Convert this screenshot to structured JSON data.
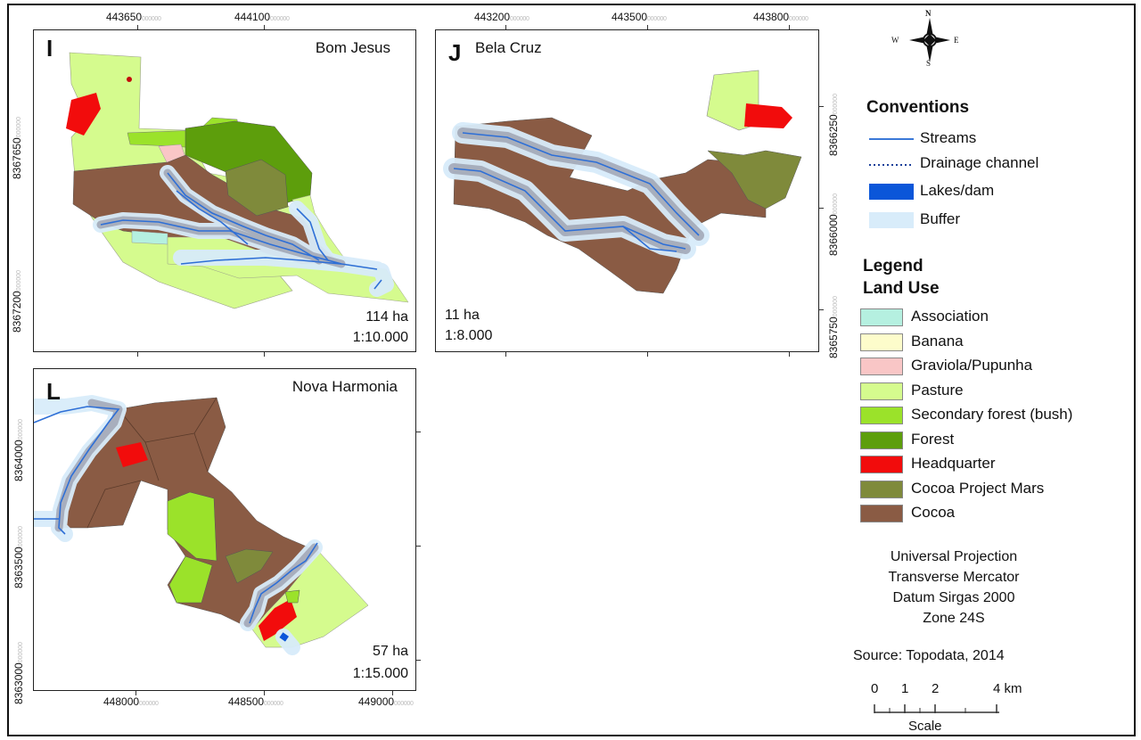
{
  "panels": {
    "i": {
      "letter": "I",
      "site": "Bom Jesus",
      "area": "114 ha",
      "scale": "1:10.000",
      "x_ticks": [
        "443650",
        "444100"
      ],
      "y_ticks": [
        "8367650",
        "8367200"
      ]
    },
    "j": {
      "letter": "J",
      "site": "Bela Cruz",
      "area": "11 ha",
      "scale": "1:8.000",
      "x_ticks": [
        "443200",
        "443500",
        "443800"
      ],
      "y_ticks": [
        "8366250",
        "8366000",
        "8365750"
      ]
    },
    "l": {
      "letter": "L",
      "site": "Nova Harmonia",
      "area": "57 ha",
      "scale": "1:15.000",
      "x_ticks": [
        "448000",
        "448500",
        "449000"
      ],
      "y_ticks": [
        "8364000",
        "8363500",
        "8363000"
      ]
    },
    "tick_suffix": "000000"
  },
  "compass": {
    "n": "N",
    "s": "S",
    "e": "E",
    "w": "W"
  },
  "conventions": {
    "title": "Conventions",
    "items": [
      {
        "label": "Streams",
        "symbol": "line",
        "color": "#3a78d8"
      },
      {
        "label": "Drainage channel",
        "symbol": "dotted",
        "color": "#1c3f9a"
      },
      {
        "label": "Lakes/dam",
        "symbol": "fill",
        "color": "#0b56d9"
      },
      {
        "label": "Buffer",
        "symbol": "fill",
        "color": "#d8ecfa"
      }
    ]
  },
  "legend": {
    "title": "Legend",
    "subtitle": "Land Use",
    "items": [
      {
        "label": "Association",
        "color": "#b5f0e0"
      },
      {
        "label": "Banana",
        "color": "#fdfccb"
      },
      {
        "label": "Graviola/Pupunha",
        "color": "#f9c6c6"
      },
      {
        "label": "Pasture",
        "color": "#d5fb8e"
      },
      {
        "label": "Secondary forest (bush)",
        "color": "#9be22a"
      },
      {
        "label": "Forest",
        "color": "#5d9e0c"
      },
      {
        "label": "Headquarter",
        "color": "#f20c0c"
      },
      {
        "label": "Cocoa Project Mars",
        "color": "#7f8a3b"
      },
      {
        "label": "Cocoa",
        "color": "#8a5b44"
      }
    ]
  },
  "projection": {
    "line1": "Universal Projection",
    "line2": "Transverse Mercator",
    "line3": "Datum Sirgas 2000",
    "line4": "Zone 24S",
    "source": "Source: Topodata, 2014"
  },
  "scalebar": {
    "ticks": [
      "0",
      "1",
      "2",
      "4"
    ],
    "unit": "km",
    "label": "Scale"
  }
}
